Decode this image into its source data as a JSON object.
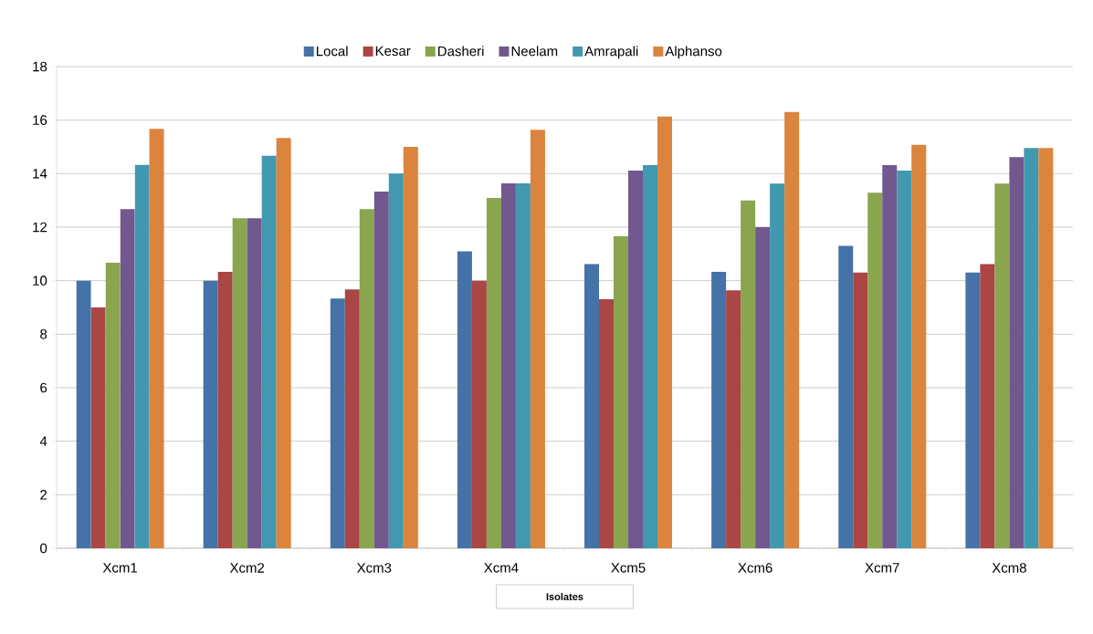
{
  "chart_data": {
    "type": "bar",
    "xlabel": "Isolates",
    "categories": [
      "Xcm1",
      "Xcm2",
      "Xcm3",
      "Xcm4",
      "Xcm5",
      "Xcm6",
      "Xcm7",
      "Xcm8"
    ],
    "series": [
      {
        "name": "Local",
        "color": "#4572a7",
        "values": [
          10,
          10,
          9.33,
          11.1,
          10.62,
          10.33,
          11.3,
          10.3
        ]
      },
      {
        "name": "Kesar",
        "color": "#aa4643",
        "values": [
          9,
          10.33,
          9.67,
          10,
          9.31,
          9.64,
          10.3,
          10.62
        ]
      },
      {
        "name": "Dasheri",
        "color": "#89a54e",
        "values": [
          10.67,
          12.33,
          12.67,
          13.09,
          11.66,
          13,
          13.29,
          13.63
        ]
      },
      {
        "name": "Neelam",
        "color": "#71588f",
        "values": [
          12.67,
          12.33,
          13.33,
          13.64,
          14.11,
          12,
          14.32,
          14.62
        ]
      },
      {
        "name": "Amrapali",
        "color": "#4198af",
        "values": [
          14.33,
          14.67,
          14,
          13.64,
          14.32,
          13.63,
          14.11,
          14.96
        ]
      },
      {
        "name": "Alphanso",
        "color": "#db843d",
        "values": [
          15.67,
          15.33,
          15,
          15.64,
          16.13,
          16.31,
          15.08,
          14.96
        ]
      }
    ],
    "ylim": [
      0,
      18
    ],
    "yticks": [
      0,
      2,
      4,
      6,
      8,
      10,
      12,
      14,
      16,
      18
    ],
    "grid": "y",
    "legend": "top"
  }
}
